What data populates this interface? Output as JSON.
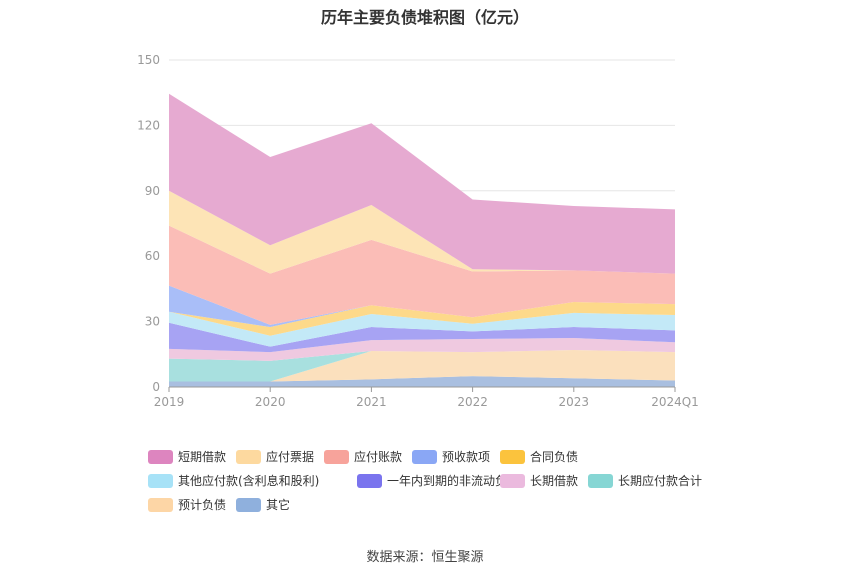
{
  "title": "历年主要负债堆积图（亿元）",
  "source": "数据来源：恒生聚源",
  "chart_data": {
    "type": "area",
    "stacked": true,
    "categories": [
      "2019",
      "2020",
      "2021",
      "2022",
      "2023",
      "2024Q1"
    ],
    "ylim": [
      0,
      150
    ],
    "yticks": [
      0,
      30,
      60,
      90,
      120,
      150
    ],
    "grid": true,
    "legend_position": "bottom",
    "series": [
      {
        "name": "其它",
        "color": "#a9bfe0",
        "values": [
          2.5,
          2.5,
          3.5,
          5,
          4,
          3
        ]
      },
      {
        "name": "预计负债",
        "color": "#fbe0bd",
        "values": [
          0,
          0,
          13,
          11,
          13,
          13
        ]
      },
      {
        "name": "长期应付款合计",
        "color": "#a8e0df",
        "values": [
          10.5,
          9.5,
          0,
          0,
          0,
          0
        ]
      },
      {
        "name": "长期借款",
        "color": "#efc9e0",
        "values": [
          4.5,
          4,
          5,
          6,
          5.5,
          4.5
        ]
      },
      {
        "name": "一年内到期的非流动负债",
        "color": "#a7a3f3",
        "values": [
          12,
          2.5,
          6,
          3.5,
          5,
          5.5
        ]
      },
      {
        "name": "其他应付款(含利息和股利)",
        "color": "#c3e9f7",
        "values": [
          5,
          5,
          6,
          3.5,
          6.5,
          7
        ]
      },
      {
        "name": "合同负债",
        "color": "#fdd98a",
        "values": [
          0,
          4,
          4,
          3,
          5,
          5
        ]
      },
      {
        "name": "预收款项",
        "color": "#a9bef8",
        "values": [
          12,
          1,
          0,
          0,
          0,
          0
        ]
      },
      {
        "name": "应付账款",
        "color": "#fbbdb7",
        "values": [
          27.5,
          23.5,
          30,
          21,
          14.5,
          14
        ]
      },
      {
        "name": "应付票据",
        "color": "#fde4b6",
        "values": [
          16,
          13,
          16,
          1,
          0,
          0
        ]
      },
      {
        "name": "短期借款",
        "color": "#e6aad1",
        "values": [
          44.5,
          40.5,
          37.5,
          32,
          29.5,
          29.5
        ]
      }
    ]
  },
  "legend": [
    {
      "label": "短期借款",
      "color": "#dd85bf"
    },
    {
      "label": "应付票据",
      "color": "#fdd99f"
    },
    {
      "label": "应付账款",
      "color": "#f7a39b"
    },
    {
      "label": "预收款项",
      "color": "#8aa7f5"
    },
    {
      "label": "合同负债",
      "color": "#fbc33d"
    },
    {
      "label": "其他应付款(含利息和股利)",
      "color": "#a7e2f7"
    },
    {
      "label": "一年内到期的非流动负债",
      "color": "#7a74ee"
    },
    {
      "label": "长期借款",
      "color": "#ebbade"
    },
    {
      "label": "长期应付款合计",
      "color": "#86d6d4"
    },
    {
      "label": "预计负债",
      "color": "#fdd6a6"
    },
    {
      "label": "其它",
      "color": "#8fb0dd"
    }
  ]
}
